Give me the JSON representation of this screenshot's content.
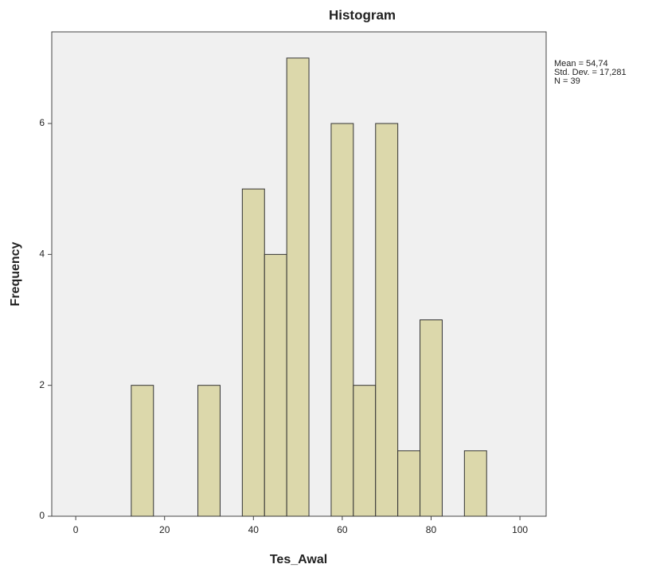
{
  "chart_data": {
    "type": "histogram",
    "title": "Histogram",
    "x_label": "Tes_Awal",
    "y_label": "Frequency",
    "bins": [
      12.5,
      17.5,
      22.5,
      27.5,
      32.5,
      37.5,
      42.5,
      47.5,
      52.5,
      57.5,
      62.5,
      67.5,
      72.5,
      77.5,
      82.5,
      87.5,
      92.5
    ],
    "counts": [
      2,
      0,
      0,
      2,
      0,
      5,
      4,
      7,
      0,
      6,
      2,
      6,
      1,
      3,
      0,
      1
    ],
    "color": "#dcd8ab",
    "xlim": [
      -5.4,
      105.9
    ],
    "xticks": [
      0,
      20,
      40,
      60,
      80,
      100
    ],
    "ylim": [
      0,
      7.4
    ],
    "yticks": [
      0,
      2,
      4,
      6
    ],
    "annotations": [
      "Mean = 54,74",
      "Std. Dev. = 17,281",
      "N = 39"
    ]
  }
}
